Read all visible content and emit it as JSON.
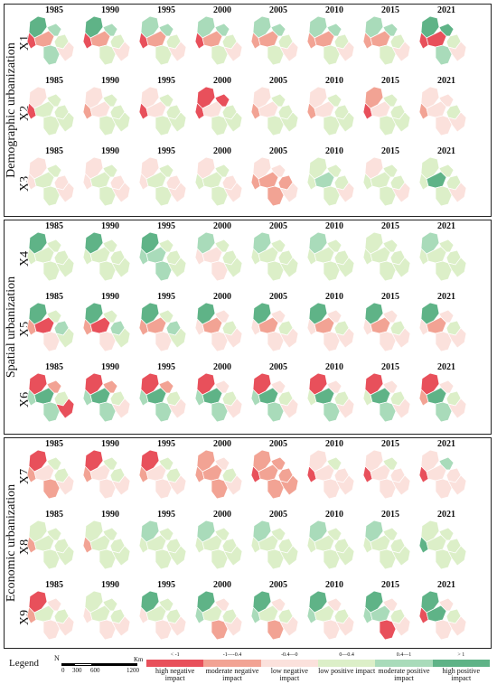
{
  "years": [
    "1985",
    "1990",
    "1995",
    "2000",
    "2005",
    "2010",
    "2015",
    "2021"
  ],
  "colors": {
    "high_neg": "#e8505b",
    "mod_neg": "#f2a394",
    "low_neg": "#fbe1dc",
    "low_pos": "#dcefc8",
    "mod_pos": "#a9dbba",
    "high_pos": "#5fb387",
    "outline": "#ffffff"
  },
  "sections": [
    {
      "title": "Demographic urbanization",
      "rows": [
        {
          "label": "X1",
          "cells": [
            [
              "high_pos",
              "high_neg",
              "mod_neg",
              "mod_pos",
              "low_pos",
              "mod_pos",
              "low_neg"
            ],
            [
              "high_pos",
              "high_neg",
              "mod_neg",
              "mod_pos",
              "low_pos",
              "low_pos",
              "low_neg"
            ],
            [
              "mod_pos",
              "high_neg",
              "mod_neg",
              "mod_pos",
              "low_pos",
              "low_pos",
              "low_neg"
            ],
            [
              "mod_pos",
              "high_neg",
              "mod_neg",
              "mod_pos",
              "low_pos",
              "low_pos",
              "low_neg"
            ],
            [
              "mod_pos",
              "mod_neg",
              "mod_neg",
              "mod_pos",
              "low_pos",
              "low_pos",
              "low_neg"
            ],
            [
              "mod_pos",
              "mod_neg",
              "mod_neg",
              "mod_pos",
              "low_pos",
              "low_pos",
              "low_neg"
            ],
            [
              "mod_pos",
              "mod_neg",
              "mod_neg",
              "mod_pos",
              "low_pos",
              "low_pos",
              "low_neg"
            ],
            [
              "high_pos",
              "high_neg",
              "high_neg",
              "high_pos",
              "low_pos",
              "mod_pos",
              "low_neg"
            ]
          ]
        },
        {
          "label": "X2",
          "cells": [
            [
              "low_neg",
              "high_neg",
              "low_pos",
              "low_pos",
              "low_pos",
              "low_pos",
              "low_pos"
            ],
            [
              "low_neg",
              "mod_neg",
              "low_neg",
              "low_pos",
              "low_pos",
              "low_pos",
              "low_pos"
            ],
            [
              "low_neg",
              "high_neg",
              "low_neg",
              "low_pos",
              "low_pos",
              "low_pos",
              "low_pos"
            ],
            [
              "high_neg",
              "high_neg",
              "low_neg",
              "high_neg",
              "low_pos",
              "low_pos",
              "low_pos"
            ],
            [
              "low_neg",
              "mod_neg",
              "low_neg",
              "low_pos",
              "low_pos",
              "low_pos",
              "low_pos"
            ],
            [
              "low_neg",
              "mod_neg",
              "low_neg",
              "low_pos",
              "low_pos",
              "low_pos",
              "low_pos"
            ],
            [
              "mod_neg",
              "high_neg",
              "low_neg",
              "low_pos",
              "low_pos",
              "low_pos",
              "low_pos"
            ],
            [
              "low_neg",
              "mod_neg",
              "low_neg",
              "low_neg",
              "low_pos",
              "low_neg",
              "low_neg"
            ]
          ]
        },
        {
          "label": "X3",
          "cells": [
            [
              "low_neg",
              "low_neg",
              "low_pos",
              "low_pos",
              "low_neg",
              "low_pos",
              "low_neg"
            ],
            [
              "low_neg",
              "low_neg",
              "low_pos",
              "low_pos",
              "low_neg",
              "low_pos",
              "low_neg"
            ],
            [
              "low_neg",
              "low_neg",
              "low_pos",
              "low_pos",
              "low_neg",
              "low_pos",
              "low_neg"
            ],
            [
              "low_neg",
              "low_pos",
              "low_pos",
              "low_pos",
              "low_neg",
              "low_pos",
              "low_neg"
            ],
            [
              "low_neg",
              "mod_neg",
              "mod_neg",
              "low_neg",
              "mod_neg",
              "mod_neg",
              "low_neg"
            ],
            [
              "low_pos",
              "low_pos",
              "mod_pos",
              "low_pos",
              "low_pos",
              "low_pos",
              "low_neg"
            ],
            [
              "low_neg",
              "low_pos",
              "low_pos",
              "low_pos",
              "low_pos",
              "low_pos",
              "low_neg"
            ],
            [
              "low_pos",
              "low_pos",
              "high_pos",
              "low_pos",
              "low_pos",
              "low_pos",
              "low_neg"
            ]
          ]
        }
      ]
    },
    {
      "title": "Spatial urbanization",
      "rows": [
        {
          "label": "X4",
          "cells": [
            [
              "high_pos",
              "low_pos",
              "low_pos",
              "low_pos",
              "low_pos",
              "low_pos",
              "low_pos"
            ],
            [
              "high_pos",
              "low_pos",
              "low_pos",
              "low_pos",
              "low_pos",
              "low_pos",
              "low_pos"
            ],
            [
              "high_pos",
              "mod_pos",
              "mod_pos",
              "low_pos",
              "low_pos",
              "mod_pos",
              "low_pos"
            ],
            [
              "mod_pos",
              "low_neg",
              "low_neg",
              "low_pos",
              "low_pos",
              "low_neg",
              "low_pos"
            ],
            [
              "mod_pos",
              "low_pos",
              "low_pos",
              "low_pos",
              "low_pos",
              "low_pos",
              "low_pos"
            ],
            [
              "mod_pos",
              "low_pos",
              "low_pos",
              "low_pos",
              "low_pos",
              "low_pos",
              "low_pos"
            ],
            [
              "low_pos",
              "low_pos",
              "low_pos",
              "low_pos",
              "low_pos",
              "low_pos",
              "low_pos"
            ],
            [
              "mod_pos",
              "low_pos",
              "low_pos",
              "low_pos",
              "low_pos",
              "low_pos",
              "low_pos"
            ]
          ]
        },
        {
          "label": "X5",
          "cells": [
            [
              "high_pos",
              "mod_neg",
              "high_neg",
              "low_pos",
              "mod_pos",
              "low_neg",
              "low_pos"
            ],
            [
              "high_pos",
              "mod_neg",
              "high_neg",
              "low_pos",
              "mod_pos",
              "low_neg",
              "low_pos"
            ],
            [
              "high_pos",
              "mod_neg",
              "mod_neg",
              "low_pos",
              "mod_pos",
              "low_neg",
              "low_pos"
            ],
            [
              "high_pos",
              "low_neg",
              "mod_neg",
              "low_neg",
              "low_pos",
              "low_neg",
              "low_neg"
            ],
            [
              "high_pos",
              "low_neg",
              "mod_neg",
              "low_neg",
              "low_pos",
              "low_neg",
              "low_neg"
            ],
            [
              "high_pos",
              "low_neg",
              "mod_neg",
              "low_neg",
              "low_pos",
              "low_neg",
              "low_neg"
            ],
            [
              "high_pos",
              "low_neg",
              "mod_neg",
              "low_neg",
              "low_pos",
              "low_neg",
              "low_neg"
            ],
            [
              "high_pos",
              "low_neg",
              "mod_neg",
              "low_neg",
              "low_pos",
              "low_neg",
              "low_neg"
            ]
          ]
        },
        {
          "label": "X6",
          "cells": [
            [
              "high_neg",
              "mod_pos",
              "high_pos",
              "mod_neg",
              "low_pos",
              "mod_pos",
              "high_neg"
            ],
            [
              "high_neg",
              "mod_pos",
              "high_pos",
              "mod_neg",
              "low_pos",
              "mod_pos",
              "low_neg"
            ],
            [
              "high_neg",
              "mod_pos",
              "high_pos",
              "mod_neg",
              "low_pos",
              "mod_pos",
              "low_neg"
            ],
            [
              "high_neg",
              "mod_pos",
              "high_pos",
              "low_neg",
              "low_pos",
              "mod_pos",
              "low_neg"
            ],
            [
              "high_neg",
              "mod_pos",
              "high_pos",
              "low_neg",
              "low_pos",
              "mod_pos",
              "low_neg"
            ],
            [
              "high_neg",
              "low_pos",
              "high_pos",
              "low_neg",
              "low_pos",
              "mod_pos",
              "low_neg"
            ],
            [
              "high_neg",
              "low_pos",
              "high_pos",
              "low_neg",
              "low_pos",
              "mod_pos",
              "low_neg"
            ],
            [
              "high_neg",
              "mod_neg",
              "high_pos",
              "low_neg",
              "low_pos",
              "mod_pos",
              "low_neg"
            ]
          ]
        }
      ]
    },
    {
      "title": "Economic urbanization",
      "rows": [
        {
          "label": "X7",
          "cells": [
            [
              "high_neg",
              "mod_neg",
              "low_neg",
              "low_pos",
              "low_pos",
              "mod_neg",
              "low_neg"
            ],
            [
              "high_neg",
              "mod_neg",
              "low_neg",
              "low_pos",
              "low_pos",
              "low_neg",
              "low_neg"
            ],
            [
              "high_neg",
              "mod_neg",
              "low_neg",
              "low_pos",
              "low_pos",
              "low_neg",
              "low_neg"
            ],
            [
              "mod_neg",
              "mod_neg",
              "mod_neg",
              "low_neg",
              "low_pos",
              "mod_neg",
              "low_neg"
            ],
            [
              "mod_neg",
              "high_neg",
              "mod_neg",
              "mod_neg",
              "mod_neg",
              "mod_neg",
              "mod_neg"
            ],
            [
              "low_neg",
              "high_neg",
              "low_neg",
              "low_pos",
              "low_neg",
              "low_neg",
              "low_neg"
            ],
            [
              "low_neg",
              "high_neg",
              "low_neg",
              "low_pos",
              "low_neg",
              "low_neg",
              "low_neg"
            ],
            [
              "low_neg",
              "high_neg",
              "low_neg",
              "mod_pos",
              "low_neg",
              "low_neg",
              "low_neg"
            ]
          ]
        },
        {
          "label": "X8",
          "cells": [
            [
              "low_pos",
              "mod_neg",
              "low_pos",
              "low_pos",
              "low_pos",
              "low_pos",
              "low_pos"
            ],
            [
              "low_pos",
              "mod_neg",
              "low_pos",
              "low_pos",
              "low_pos",
              "low_pos",
              "low_pos"
            ],
            [
              "mod_pos",
              "low_pos",
              "low_pos",
              "low_pos",
              "low_pos",
              "low_pos",
              "low_pos"
            ],
            [
              "mod_pos",
              "low_pos",
              "low_pos",
              "low_pos",
              "low_pos",
              "low_pos",
              "low_pos"
            ],
            [
              "mod_pos",
              "low_pos",
              "low_pos",
              "low_pos",
              "low_pos",
              "low_pos",
              "low_pos"
            ],
            [
              "mod_pos",
              "low_pos",
              "low_pos",
              "low_pos",
              "low_pos",
              "low_pos",
              "low_pos"
            ],
            [
              "mod_pos",
              "low_pos",
              "low_pos",
              "low_pos",
              "low_pos",
              "low_pos",
              "low_pos"
            ],
            [
              "low_pos",
              "high_pos",
              "low_pos",
              "low_pos",
              "low_pos",
              "low_pos",
              "low_pos"
            ]
          ]
        },
        {
          "label": "X9",
          "cells": [
            [
              "high_neg",
              "mod_neg",
              "low_pos",
              "low_neg",
              "low_pos",
              "low_neg",
              "low_neg"
            ],
            [
              "low_pos",
              "low_neg",
              "low_pos",
              "low_pos",
              "low_pos",
              "low_neg",
              "low_neg"
            ],
            [
              "high_pos",
              "low_neg",
              "low_pos",
              "low_pos",
              "low_pos",
              "low_neg",
              "low_neg"
            ],
            [
              "high_pos",
              "mod_pos",
              "low_pos",
              "low_neg",
              "low_pos",
              "mod_neg",
              "low_neg"
            ],
            [
              "high_pos",
              "mod_pos",
              "low_pos",
              "low_neg",
              "low_pos",
              "mod_neg",
              "low_neg"
            ],
            [
              "high_pos",
              "mod_pos",
              "low_pos",
              "low_neg",
              "low_pos",
              "low_neg",
              "low_neg"
            ],
            [
              "high_pos",
              "mod_pos",
              "mod_pos",
              "low_neg",
              "low_pos",
              "high_neg",
              "low_neg"
            ],
            [
              "high_pos",
              "high_neg",
              "high_pos",
              "low_neg",
              "low_pos",
              "low_neg",
              "low_neg"
            ]
          ]
        }
      ]
    }
  ],
  "legend": {
    "title": "Legend",
    "north": "N",
    "scale_ticks": [
      "0",
      "300",
      "600",
      "1200"
    ],
    "scale_unit": "Km",
    "classes": [
      {
        "key": "high_neg",
        "range": "< -1",
        "label": "high negative impact"
      },
      {
        "key": "mod_neg",
        "range": "-1—-0.4",
        "label": "moderate negative impact"
      },
      {
        "key": "low_neg",
        "range": "-0.4—0",
        "label": "low negative impact"
      },
      {
        "key": "low_pos",
        "range": "0—0.4",
        "label": "low positive impact"
      },
      {
        "key": "mod_pos",
        "range": "0.4—1",
        "label": "moderate positive impact"
      },
      {
        "key": "high_pos",
        "range": "> 1",
        "label": "high positive impact"
      }
    ]
  }
}
